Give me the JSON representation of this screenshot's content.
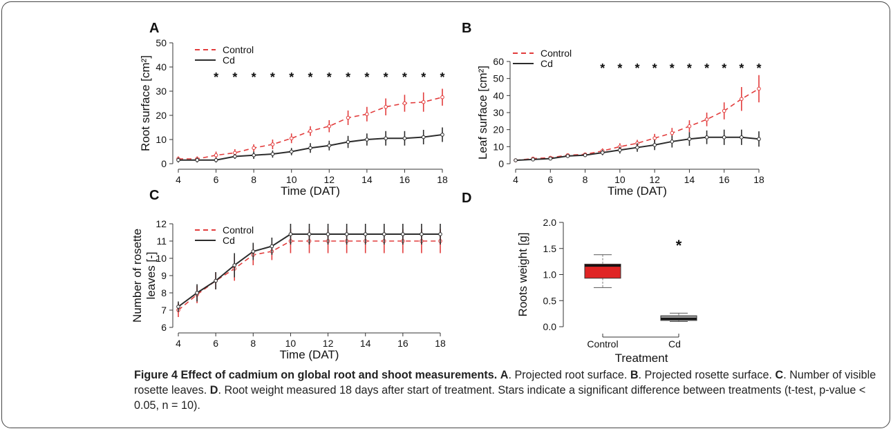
{
  "star": "*",
  "legend": {
    "control": "Control",
    "cd": "Cd"
  },
  "colors": {
    "control": "#e23b3b",
    "cd": "#2b2b2b",
    "box_control": "#e02424",
    "box_cd": "#9a9a9a"
  },
  "caption": {
    "label": "Figure 4",
    "title": "Effect of cadmium on global root and shoot measurements.",
    "parts": [
      {
        "key": "A",
        "text": ". Projected root surface. "
      },
      {
        "key": "B",
        "text": ". Projected rosette surface. "
      },
      {
        "key": "C",
        "text": ". Number of visible rosette leaves. "
      },
      {
        "key": "D",
        "text": ". Root weight measured 18 days after start of treatment. Stars indicate a significant difference between treatments (t-test, p-value < 0.05, n = 10)."
      }
    ]
  },
  "chart_data": [
    {
      "panel": "A",
      "type": "line",
      "xlabel": "Time (DAT)",
      "ylabel": "Root surface [cm²]",
      "xlim": [
        4,
        18
      ],
      "ylim": [
        0,
        50
      ],
      "xticks": [
        4,
        6,
        8,
        10,
        12,
        14,
        16,
        18
      ],
      "yticks": [
        0,
        10,
        20,
        30,
        40,
        50
      ],
      "legend_position": "top-left",
      "x": [
        4,
        5,
        6,
        7,
        8,
        9,
        10,
        11,
        12,
        13,
        14,
        15,
        16,
        17,
        18
      ],
      "series": [
        {
          "name": "Control",
          "values": [
            2,
            2,
            3.5,
            4.5,
            6.5,
            8,
            10.5,
            13.5,
            15.5,
            19,
            20.5,
            23.5,
            25,
            25.5,
            27.5
          ],
          "errors": [
            1,
            1,
            1.5,
            1.5,
            1.5,
            2,
            2,
            2,
            2.5,
            3,
            3,
            3.5,
            3.5,
            4,
            3.5
          ]
        },
        {
          "name": "Cd",
          "values": [
            1.5,
            1.5,
            1.5,
            3,
            3.5,
            4,
            5,
            6.5,
            7.5,
            9,
            10,
            10.5,
            10.5,
            11,
            12
          ],
          "errors": [
            1,
            1,
            1,
            1,
            1.5,
            1.5,
            1.5,
            2,
            2,
            2.5,
            2.5,
            3,
            3,
            3,
            3
          ]
        }
      ],
      "significant_x": [
        6,
        7,
        8,
        9,
        10,
        11,
        12,
        13,
        14,
        15,
        16,
        17,
        18
      ]
    },
    {
      "panel": "B",
      "type": "line",
      "xlabel": "Time (DAT)",
      "ylabel": "Leaf surface [cm²]",
      "xlim": [
        4,
        18
      ],
      "ylim": [
        0,
        60
      ],
      "xticks": [
        4,
        6,
        8,
        10,
        12,
        14,
        16,
        18
      ],
      "yticks": [
        0,
        10,
        20,
        30,
        40,
        50,
        60
      ],
      "legend_position": "top-left",
      "x": [
        4,
        5,
        6,
        7,
        8,
        9,
        10,
        11,
        12,
        13,
        14,
        15,
        16,
        17,
        18
      ],
      "series": [
        {
          "name": "Control",
          "values": [
            2,
            3,
            3.5,
            5,
            5.5,
            7.5,
            10,
            12,
            15,
            18,
            22,
            26,
            31,
            38,
            44
          ],
          "errors": [
            0.5,
            0.5,
            0.5,
            1,
            1,
            1.5,
            2,
            2,
            2.5,
            3,
            3.5,
            4,
            5,
            7,
            8
          ]
        },
        {
          "name": "Cd",
          "values": [
            2,
            2.5,
            3,
            4.5,
            5,
            6.5,
            8,
            9.5,
            11,
            13,
            14.5,
            15.5,
            15.5,
            15.5,
            14.5
          ],
          "errors": [
            0.5,
            0.5,
            0.5,
            1,
            1,
            1.5,
            2,
            2.5,
            3,
            3.5,
            4,
            4,
            4.5,
            4.5,
            4.5
          ]
        }
      ],
      "significant_x": [
        9,
        10,
        11,
        12,
        13,
        14,
        15,
        16,
        17,
        18
      ]
    },
    {
      "panel": "C",
      "type": "line",
      "xlabel": "Time (DAT)",
      "ylabel": "Number of rosette leaves [-]",
      "xlim": [
        4,
        18
      ],
      "ylim": [
        6,
        12
      ],
      "xticks": [
        4,
        6,
        8,
        10,
        12,
        14,
        16,
        18
      ],
      "yticks": [
        6,
        7,
        8,
        9,
        10,
        11,
        12
      ],
      "legend_position": "top-left",
      "x": [
        4,
        5,
        6,
        7,
        8,
        9,
        10,
        11,
        12,
        13,
        14,
        15,
        16,
        17,
        18
      ],
      "series": [
        {
          "name": "Control",
          "values": [
            7,
            7.9,
            8.7,
            9.4,
            10.2,
            10.4,
            11,
            11,
            11,
            11,
            11,
            11,
            11,
            11,
            11
          ],
          "errors": [
            0.4,
            0.5,
            0.5,
            0.7,
            0.6,
            0.5,
            0.7,
            0.7,
            0.7,
            0.7,
            0.7,
            0.7,
            0.7,
            0.7,
            0.7
          ]
        },
        {
          "name": "Cd",
          "values": [
            7.2,
            8,
            8.7,
            9.6,
            10.4,
            10.7,
            11.4,
            11.4,
            11.4,
            11.4,
            11.4,
            11.4,
            11.4,
            11.4,
            11.4
          ],
          "errors": [
            0.3,
            0.5,
            0.5,
            0.7,
            0.5,
            0.5,
            0.6,
            0.6,
            0.6,
            0.6,
            0.6,
            0.6,
            0.6,
            0.6,
            0.6
          ]
        }
      ]
    },
    {
      "panel": "D",
      "type": "box",
      "xlabel": "Treatment",
      "ylabel": "Roots weight [g]",
      "ylim": [
        0.0,
        2.0
      ],
      "yticks": [
        "0.0",
        "0.5",
        "1.0",
        "1.5",
        "2.0"
      ],
      "categories": [
        "Control",
        "Cd"
      ],
      "boxes": [
        {
          "name": "Control",
          "min": 0.75,
          "q1": 0.93,
          "median": 1.17,
          "q3": 1.2,
          "max": 1.38
        },
        {
          "name": "Cd",
          "min": 0.1,
          "q1": 0.12,
          "median": 0.15,
          "q3": 0.21,
          "max": 0.26
        }
      ],
      "significance_marker": "*"
    }
  ]
}
